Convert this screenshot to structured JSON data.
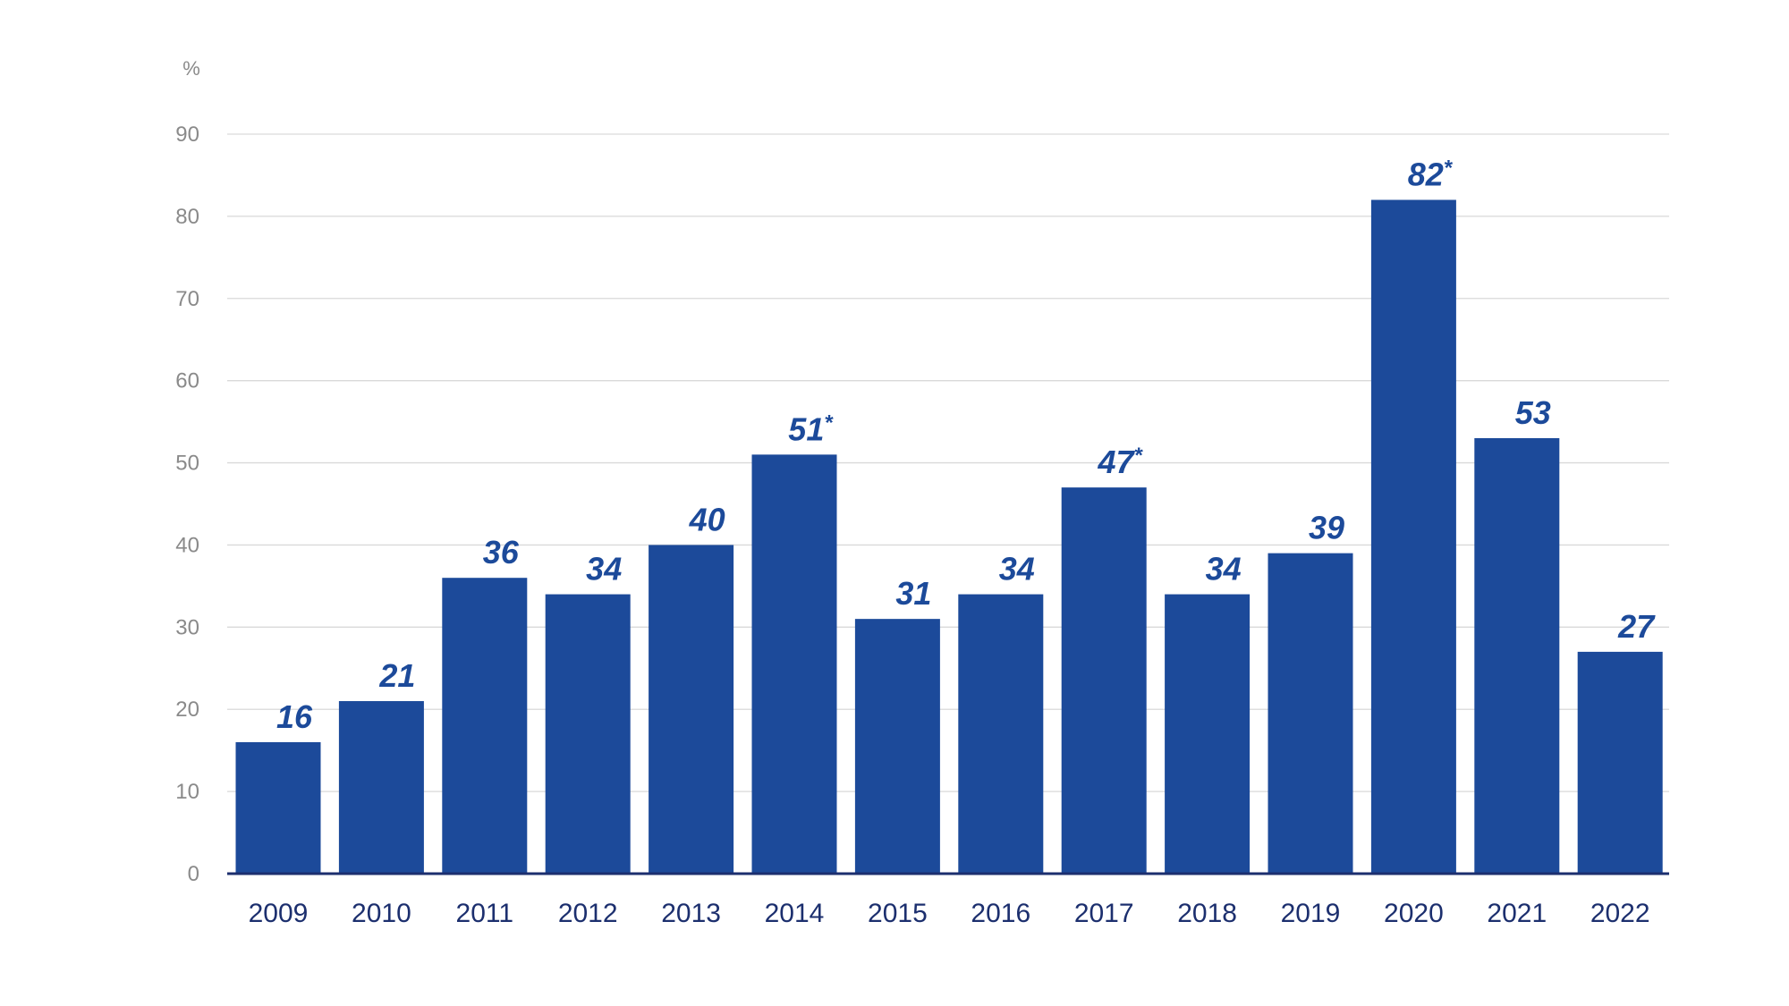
{
  "chart_data": {
    "type": "bar",
    "title": "",
    "xlabel": "",
    "ylabel": "%",
    "ylim": [
      0,
      90
    ],
    "yticks": [
      0,
      10,
      20,
      30,
      40,
      50,
      60,
      70,
      80,
      90
    ],
    "grid": true,
    "bar_color": "#1c4a9a",
    "label_color": "#1c4a9a",
    "categories": [
      "2009",
      "2010",
      "2011",
      "2012",
      "2013",
      "2014",
      "2015",
      "2016",
      "2017",
      "2018",
      "2019",
      "2020",
      "2021",
      "2022"
    ],
    "values": [
      16,
      21,
      36,
      34,
      40,
      51,
      31,
      34,
      47,
      34,
      39,
      82,
      53,
      27
    ],
    "value_labels": [
      "16",
      "21",
      "36",
      "34",
      "40",
      "51",
      "31",
      "34",
      "47",
      "34",
      "39",
      "82",
      "53",
      "27"
    ],
    "label_marks": [
      "",
      "",
      "",
      "",
      "",
      "*",
      "",
      "",
      "*",
      "",
      "",
      "*",
      "",
      ""
    ]
  }
}
